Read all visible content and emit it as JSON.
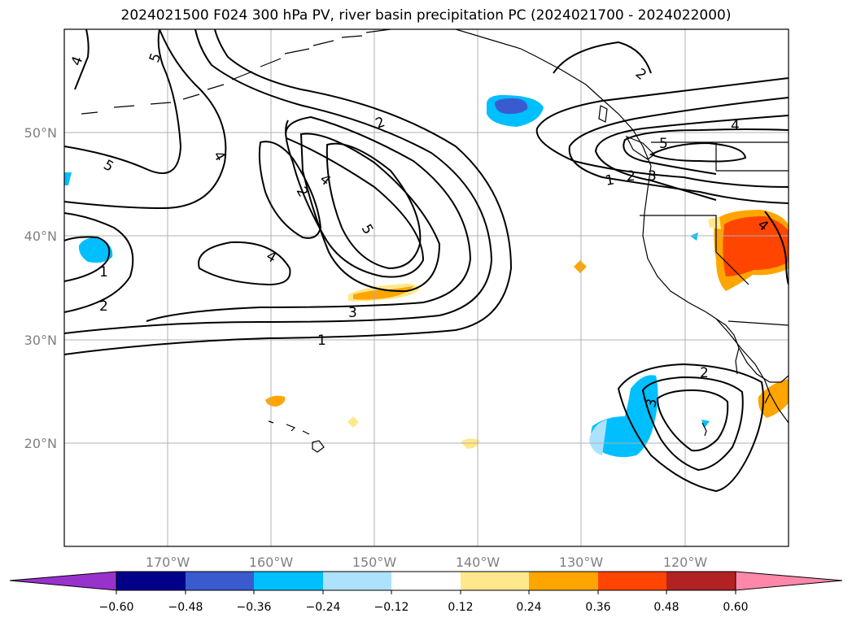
{
  "title": "2024021500 F024 300 hPa PV, river basin precipitation PC (2024021700 - 2024022000)",
  "map": {
    "lon_range": [
      -180,
      -110
    ],
    "lat_range": [
      10,
      60
    ],
    "lon_ticks": [
      {
        "value": -170,
        "label": "170°W"
      },
      {
        "value": -160,
        "label": "160°W"
      },
      {
        "value": -150,
        "label": "150°W"
      },
      {
        "value": -140,
        "label": "140°W"
      },
      {
        "value": -130,
        "label": "130°W"
      },
      {
        "value": -120,
        "label": "120°W"
      }
    ],
    "lat_ticks": [
      {
        "value": 20,
        "label": "20°N"
      },
      {
        "value": 30,
        "label": "30°N"
      },
      {
        "value": 40,
        "label": "40°N"
      },
      {
        "value": 50,
        "label": "50°N"
      }
    ],
    "grid": true
  },
  "colorbar": {
    "extend": "both",
    "colors": [
      "#9932CC",
      "#00008B",
      "#3A5BCF",
      "#00BFFF",
      "#ADE2FF",
      "#FFFFFF",
      "#FFE88C",
      "#FFA500",
      "#FF4500",
      "#B22222",
      "#FF88AA"
    ],
    "tick_labels": [
      "−0.60",
      "−0.48",
      "−0.36",
      "−0.24",
      "−0.12",
      "0.12",
      "0.24",
      "0.36",
      "0.48",
      "0.60"
    ]
  },
  "contour_labels": [
    "4",
    "5",
    "4",
    "5",
    "2",
    "2",
    "4",
    "5",
    "4",
    "1",
    "2",
    "3",
    "1",
    "2",
    "3",
    "4",
    "5",
    "1",
    "2",
    "3",
    "2",
    "4"
  ],
  "colors": {
    "contour": "#000000",
    "grid": "#b0b0b0",
    "tick_text": "#808080"
  }
}
